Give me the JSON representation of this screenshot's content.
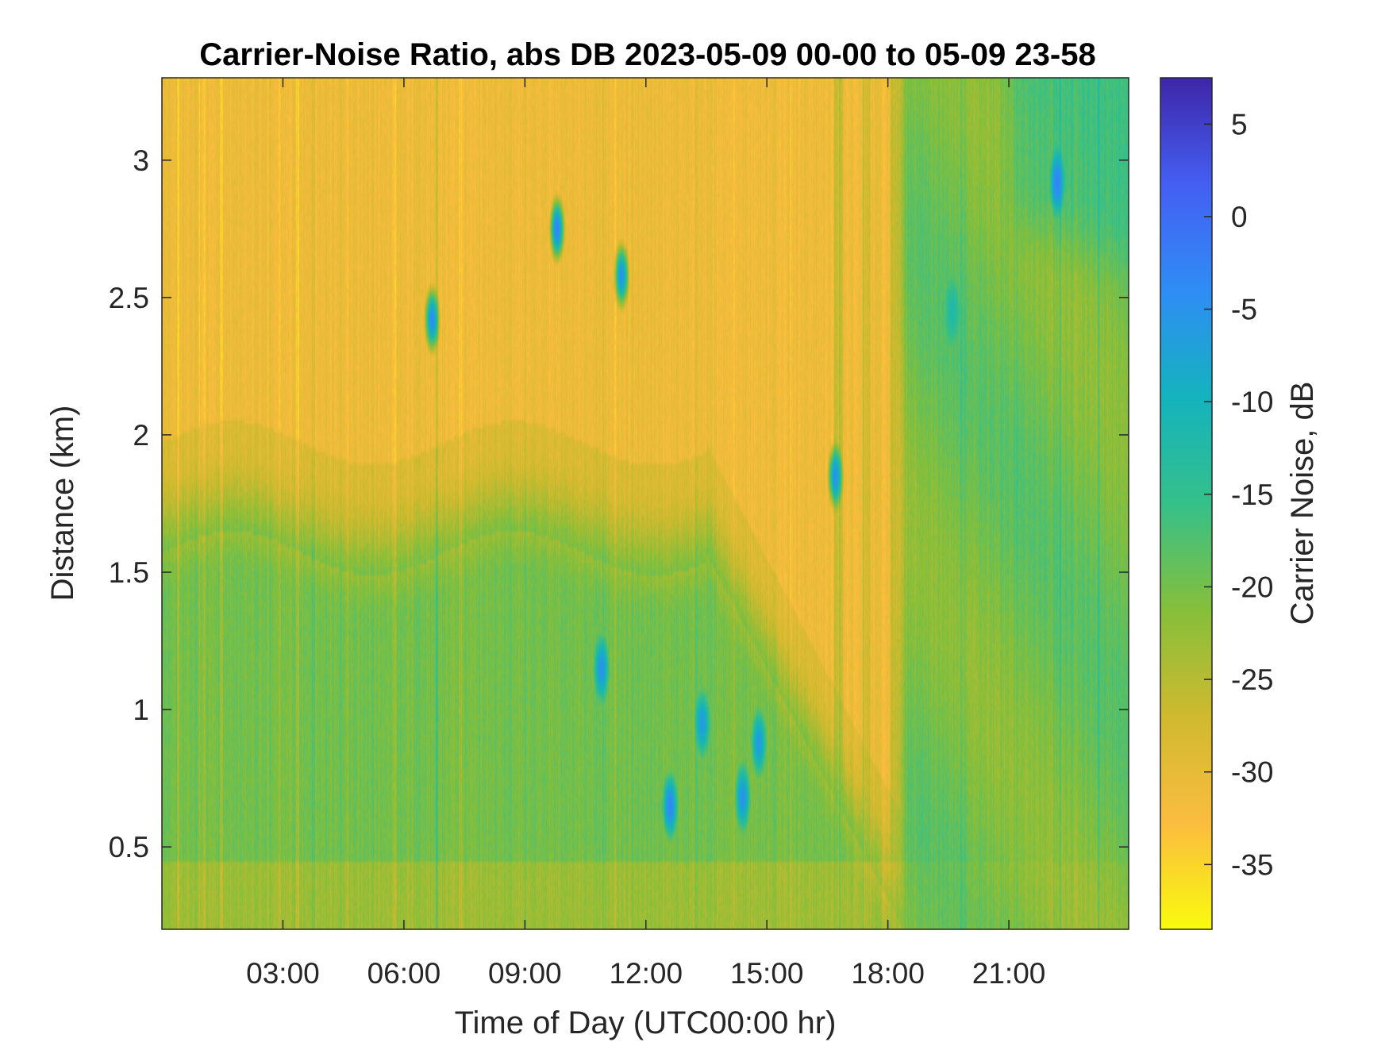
{
  "chart_data": {
    "type": "heatmap",
    "title": "Carrier-Noise Ratio, abs DB 2023-05-09 00-00 to 05-09 23-58",
    "xlabel": "Time of Day (UTC00:00 hr)",
    "ylabel": "Distance (km)",
    "colorbar_label": "Carrier Noise, dB",
    "x_unit": "hours",
    "xlim": [
      0,
      23.97
    ],
    "ylim": [
      0.2,
      3.3
    ],
    "clim": [
      -38.5,
      7.5
    ],
    "x_ticks": [
      {
        "value": 3,
        "label": "03:00"
      },
      {
        "value": 6,
        "label": "06:00"
      },
      {
        "value": 9,
        "label": "09:00"
      },
      {
        "value": 12,
        "label": "12:00"
      },
      {
        "value": 15,
        "label": "15:00"
      },
      {
        "value": 18,
        "label": "18:00"
      },
      {
        "value": 21,
        "label": "21:00"
      }
    ],
    "y_ticks": [
      {
        "value": 0.5,
        "label": "0.5"
      },
      {
        "value": 1,
        "label": "1"
      },
      {
        "value": 1.5,
        "label": "1.5"
      },
      {
        "value": 2,
        "label": "2"
      },
      {
        "value": 2.5,
        "label": "2.5"
      },
      {
        "value": 3,
        "label": "3"
      }
    ],
    "colorbar_ticks": [
      {
        "value": 5,
        "label": "5"
      },
      {
        "value": 0,
        "label": "0"
      },
      {
        "value": -5,
        "label": "-5"
      },
      {
        "value": -10,
        "label": "-10"
      },
      {
        "value": -15,
        "label": "-15"
      },
      {
        "value": -20,
        "label": "-20"
      },
      {
        "value": -25,
        "label": "-25"
      },
      {
        "value": -30,
        "label": "-30"
      },
      {
        "value": -35,
        "label": "-35"
      }
    ],
    "colormap": "parula-reversed",
    "colormap_stops": [
      "#f9fb0e",
      "#fbbc3f",
      "#d0ba2f",
      "#86bf3a",
      "#35c08a",
      "#14b3be",
      "#2f8df5",
      "#445ff2",
      "#3e26a8"
    ],
    "grid": false,
    "region_levels_db": [
      {
        "name": "upper-background",
        "x": [
          0,
          24
        ],
        "y": [
          1.8,
          3.3
        ],
        "value": -31
      },
      {
        "name": "middle-transition",
        "x": [
          0,
          16
        ],
        "y": [
          1.45,
          1.8
        ],
        "value": -27
      },
      {
        "name": "lower-background",
        "x": [
          0,
          17
        ],
        "y": [
          0.2,
          1.45
        ],
        "value": -20
      },
      {
        "name": "evening-band",
        "x": [
          18.2,
          24
        ],
        "y": [
          0.2,
          3.3
        ],
        "value": -20
      },
      {
        "name": "late-upper-plume",
        "x": [
          20.5,
          24
        ],
        "y": [
          2.7,
          3.3
        ],
        "value": -16
      }
    ],
    "features_db": [
      {
        "x": 6.7,
        "y": 2.42,
        "value": -4
      },
      {
        "x": 9.8,
        "y": 2.75,
        "value": -3
      },
      {
        "x": 11.4,
        "y": 2.58,
        "value": -5
      },
      {
        "x": 10.9,
        "y": 1.15,
        "value": -5
      },
      {
        "x": 12.6,
        "y": 0.65,
        "value": -3
      },
      {
        "x": 13.4,
        "y": 0.95,
        "value": -6
      },
      {
        "x": 14.4,
        "y": 0.68,
        "value": -5
      },
      {
        "x": 14.8,
        "y": 0.88,
        "value": -6
      },
      {
        "x": 16.7,
        "y": 1.85,
        "value": -5
      },
      {
        "x": 22.2,
        "y": 2.92,
        "value": -3
      },
      {
        "x": 19.6,
        "y": 2.45,
        "value": -12
      }
    ]
  }
}
